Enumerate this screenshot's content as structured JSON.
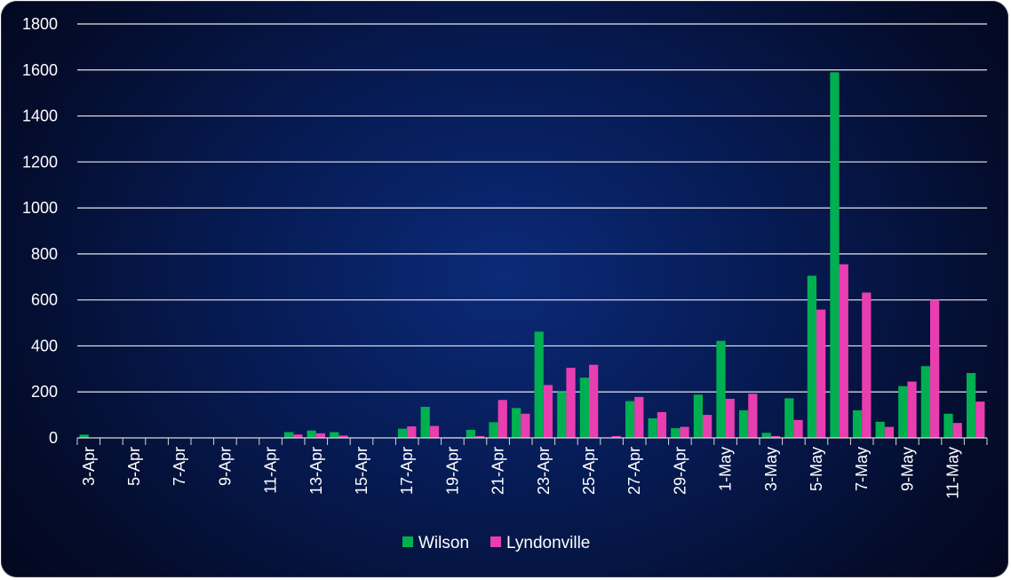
{
  "chart_data": {
    "type": "bar",
    "title": "",
    "xlabel": "",
    "ylabel": "",
    "ylim": [
      0,
      1800
    ],
    "yticks": [
      0,
      200,
      400,
      600,
      800,
      1000,
      1200,
      1400,
      1600,
      1800
    ],
    "grid": true,
    "legend_position": "bottom",
    "categories": [
      "3-Apr",
      "4-Apr",
      "5-Apr",
      "6-Apr",
      "7-Apr",
      "8-Apr",
      "9-Apr",
      "10-Apr",
      "11-Apr",
      "12-Apr",
      "13-Apr",
      "14-Apr",
      "15-Apr",
      "16-Apr",
      "17-Apr",
      "18-Apr",
      "19-Apr",
      "20-Apr",
      "21-Apr",
      "22-Apr",
      "23-Apr",
      "24-Apr",
      "25-Apr",
      "26-Apr",
      "27-Apr",
      "28-Apr",
      "29-Apr",
      "30-Apr",
      "1-May",
      "2-May",
      "3-May",
      "4-May",
      "5-May",
      "6-May",
      "7-May",
      "8-May",
      "9-May",
      "10-May",
      "11-May",
      "12-May"
    ],
    "tick_labels": [
      "3-Apr",
      "5-Apr",
      "7-Apr",
      "9-Apr",
      "11-Apr",
      "13-Apr",
      "15-Apr",
      "17-Apr",
      "19-Apr",
      "21-Apr",
      "23-Apr",
      "25-Apr",
      "27-Apr",
      "29-Apr",
      "1-May",
      "3-May",
      "5-May",
      "7-May",
      "9-May",
      "11-May"
    ],
    "series": [
      {
        "name": "Wilson",
        "color": "#00b050",
        "values": [
          14,
          0,
          0,
          0,
          0,
          0,
          0,
          0,
          0,
          25,
          32,
          25,
          0,
          0,
          40,
          135,
          3,
          35,
          68,
          130,
          462,
          200,
          262,
          0,
          160,
          85,
          42,
          188,
          422,
          120,
          22,
          172,
          705,
          1590,
          120,
          70,
          225,
          312,
          105,
          282
        ]
      },
      {
        "name": "Lyndonville",
        "color": "#e83eb0",
        "values": [
          0,
          0,
          0,
          0,
          0,
          0,
          0,
          0,
          0,
          15,
          20,
          10,
          0,
          0,
          50,
          52,
          3,
          8,
          165,
          105,
          230,
          305,
          318,
          8,
          178,
          112,
          48,
          100,
          170,
          192,
          8,
          78,
          558,
          755,
          632,
          48,
          245,
          600,
          65,
          158
        ]
      }
    ]
  }
}
